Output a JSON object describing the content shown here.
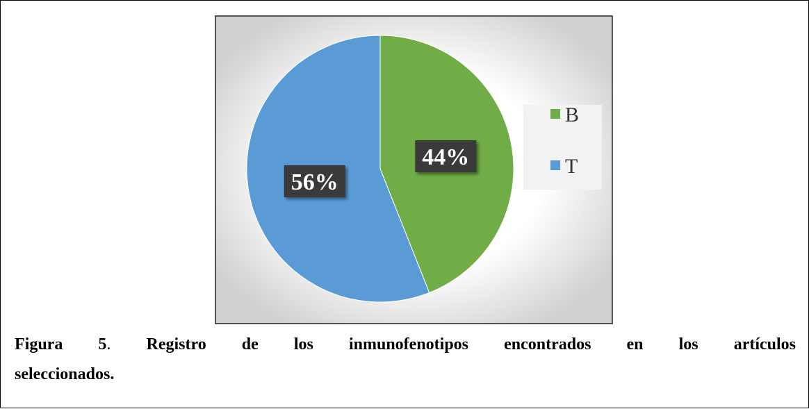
{
  "chart_data": {
    "type": "pie",
    "categories": [
      "B",
      "T"
    ],
    "values": [
      44,
      56
    ],
    "value_labels": [
      "44%",
      "56%"
    ],
    "colors": [
      "#70ad47",
      "#5b9bd5"
    ],
    "legend": "right"
  },
  "caption": {
    "label": "Figura 5",
    "separator": ".",
    "text": "Registro de los inmunofenotipos encontrados en los artículos",
    "continuation": "seleccionados."
  }
}
